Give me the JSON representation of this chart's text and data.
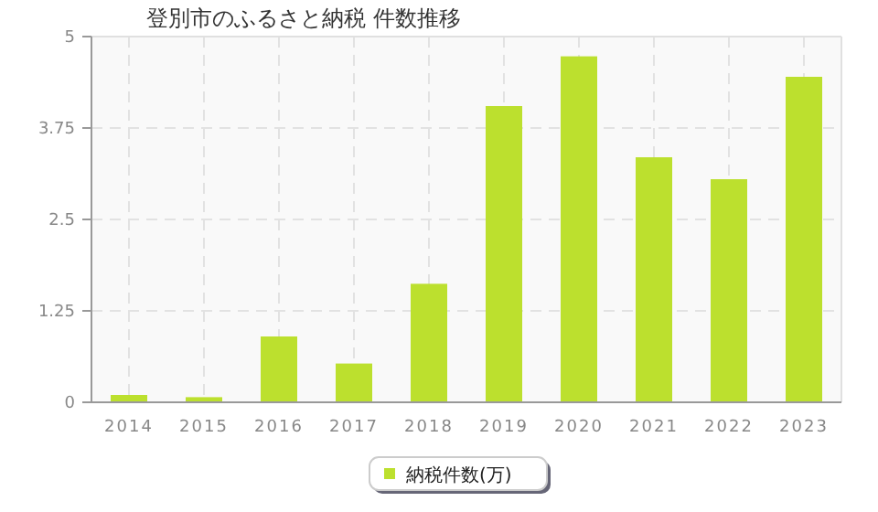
{
  "chart_data": {
    "type": "bar",
    "title": "登別市のふるさと納税 件数推移",
    "categories": [
      "2014",
      "2015",
      "2016",
      "2017",
      "2018",
      "2019",
      "2020",
      "2021",
      "2022",
      "2023"
    ],
    "series": [
      {
        "name": "納税件数(万)",
        "color": "#bce02e",
        "values": [
          0.1,
          0.07,
          0.9,
          0.53,
          1.62,
          4.05,
          4.73,
          3.35,
          3.05,
          4.45
        ]
      }
    ],
    "ylim": [
      0,
      5
    ],
    "yticks": [
      0,
      1.25,
      2.5,
      3.75,
      5
    ],
    "grid": true,
    "legend": "bottom"
  }
}
